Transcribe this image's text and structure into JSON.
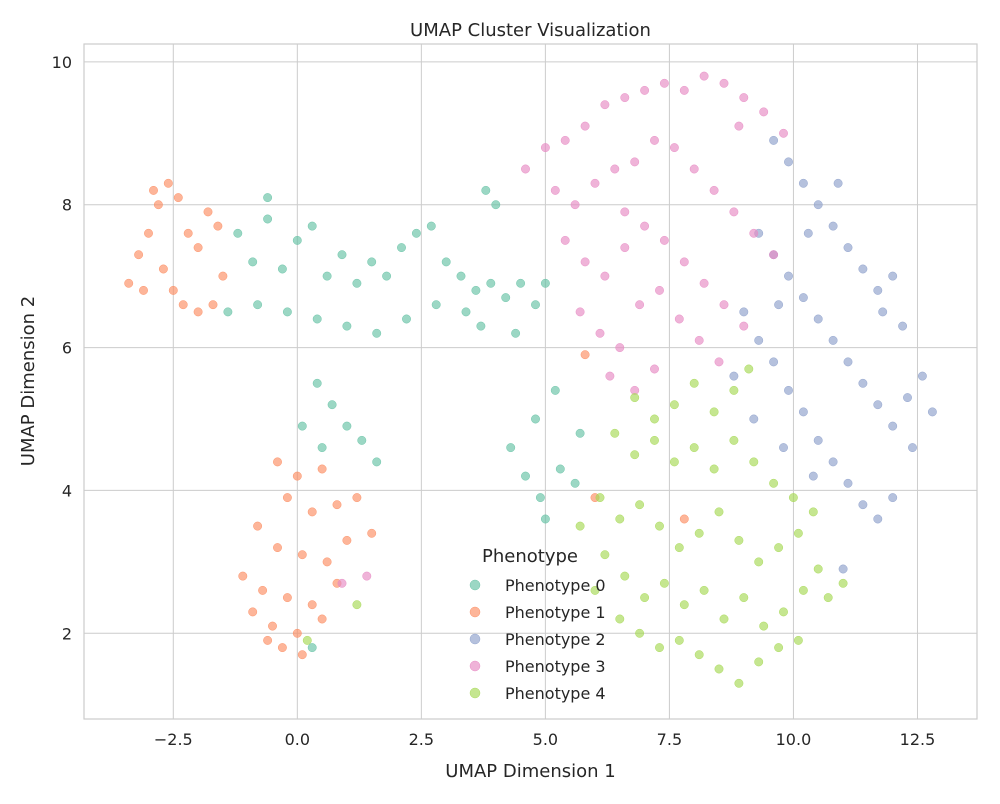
{
  "chart_data": {
    "type": "scatter",
    "title": "UMAP Cluster Visualization",
    "xlabel": "UMAP Dimension 1",
    "ylabel": "UMAP Dimension 2",
    "xlim": [
      -4.3,
      13.7
    ],
    "ylim": [
      0.8,
      10.25
    ],
    "x_ticks": [
      -2.5,
      0.0,
      2.5,
      5.0,
      7.5,
      10.0,
      12.5
    ],
    "x_tick_labels": [
      "−2.5",
      "0.0",
      "2.5",
      "5.0",
      "7.5",
      "10.0",
      "12.5"
    ],
    "y_ticks": [
      2,
      4,
      6,
      8,
      10
    ],
    "y_tick_labels": [
      "2",
      "4",
      "6",
      "8",
      "10"
    ],
    "grid": true,
    "marker_alpha": 0.65,
    "legend": {
      "title": "Phenotype",
      "placement": "lower-center"
    },
    "series": [
      {
        "name": "Phenotype 0",
        "color": "#66c2a5",
        "points": [
          [
            -1.2,
            7.6
          ],
          [
            -0.9,
            7.2
          ],
          [
            -0.6,
            7.8
          ],
          [
            -0.3,
            7.1
          ],
          [
            0.0,
            7.5
          ],
          [
            0.3,
            7.7
          ],
          [
            0.6,
            7.0
          ],
          [
            0.9,
            7.3
          ],
          [
            1.2,
            6.9
          ],
          [
            1.5,
            7.2
          ],
          [
            1.8,
            7.0
          ],
          [
            2.1,
            7.4
          ],
          [
            2.4,
            7.6
          ],
          [
            2.7,
            7.7
          ],
          [
            3.0,
            7.2
          ],
          [
            3.3,
            7.0
          ],
          [
            3.6,
            6.8
          ],
          [
            3.9,
            6.9
          ],
          [
            4.2,
            6.7
          ],
          [
            4.5,
            6.9
          ],
          [
            3.8,
            8.2
          ],
          [
            4.0,
            8.0
          ],
          [
            -0.8,
            6.6
          ],
          [
            -0.2,
            6.5
          ],
          [
            0.4,
            6.4
          ],
          [
            1.0,
            6.3
          ],
          [
            1.6,
            6.2
          ],
          [
            2.2,
            6.4
          ],
          [
            2.8,
            6.6
          ],
          [
            0.4,
            5.5
          ],
          [
            0.7,
            5.2
          ],
          [
            1.0,
            4.9
          ],
          [
            1.3,
            4.7
          ],
          [
            1.6,
            4.4
          ],
          [
            0.1,
            4.9
          ],
          [
            0.5,
            4.6
          ],
          [
            4.3,
            4.6
          ],
          [
            4.6,
            4.2
          ],
          [
            4.9,
            3.9
          ],
          [
            5.0,
            3.6
          ],
          [
            5.3,
            4.3
          ],
          [
            5.6,
            4.1
          ],
          [
            5.2,
            5.4
          ],
          [
            4.8,
            5.0
          ],
          [
            5.7,
            4.8
          ],
          [
            3.7,
            6.3
          ],
          [
            4.4,
            6.2
          ],
          [
            4.8,
            6.6
          ],
          [
            5.0,
            6.9
          ],
          [
            3.4,
            6.5
          ],
          [
            -1.4,
            6.5
          ],
          [
            0.3,
            1.8
          ],
          [
            -0.6,
            8.1
          ]
        ]
      },
      {
        "name": "Phenotype 1",
        "color": "#fc8d62",
        "points": [
          [
            -3.4,
            6.9
          ],
          [
            -3.2,
            7.3
          ],
          [
            -3.0,
            7.6
          ],
          [
            -2.8,
            8.0
          ],
          [
            -2.6,
            8.3
          ],
          [
            -2.4,
            8.1
          ],
          [
            -2.2,
            7.6
          ],
          [
            -2.0,
            7.4
          ],
          [
            -1.8,
            7.9
          ],
          [
            -2.7,
            7.1
          ],
          [
            -2.5,
            6.8
          ],
          [
            -2.3,
            6.6
          ],
          [
            -2.0,
            6.5
          ],
          [
            -1.7,
            6.6
          ],
          [
            -1.5,
            7.0
          ],
          [
            -3.1,
            6.8
          ],
          [
            -1.6,
            7.7
          ],
          [
            -2.9,
            8.2
          ],
          [
            -0.4,
            4.4
          ],
          [
            0.0,
            4.2
          ],
          [
            0.5,
            4.3
          ],
          [
            -0.2,
            3.9
          ],
          [
            0.3,
            3.7
          ],
          [
            0.8,
            3.8
          ],
          [
            1.2,
            3.9
          ],
          [
            -0.8,
            3.5
          ],
          [
            -0.4,
            3.2
          ],
          [
            0.1,
            3.1
          ],
          [
            0.6,
            3.0
          ],
          [
            1.0,
            3.3
          ],
          [
            -1.1,
            2.8
          ],
          [
            -0.7,
            2.6
          ],
          [
            -0.2,
            2.5
          ],
          [
            0.3,
            2.4
          ],
          [
            0.8,
            2.7
          ],
          [
            -0.9,
            2.3
          ],
          [
            -0.5,
            2.1
          ],
          [
            0.0,
            2.0
          ],
          [
            0.5,
            2.2
          ],
          [
            -0.3,
            1.8
          ],
          [
            0.1,
            1.7
          ],
          [
            -0.6,
            1.9
          ],
          [
            6.0,
            3.9
          ],
          [
            5.8,
            5.9
          ],
          [
            7.8,
            3.6
          ],
          [
            1.5,
            3.4
          ]
        ]
      },
      {
        "name": "Phenotype 2",
        "color": "#8da0cb",
        "points": [
          [
            9.6,
            8.9
          ],
          [
            9.9,
            8.6
          ],
          [
            10.2,
            8.3
          ],
          [
            10.5,
            8.0
          ],
          [
            10.8,
            7.7
          ],
          [
            11.1,
            7.4
          ],
          [
            11.4,
            7.1
          ],
          [
            11.7,
            6.8
          ],
          [
            12.0,
            7.0
          ],
          [
            9.3,
            7.6
          ],
          [
            9.6,
            7.3
          ],
          [
            9.9,
            7.0
          ],
          [
            10.2,
            6.7
          ],
          [
            10.5,
            6.4
          ],
          [
            10.8,
            6.1
          ],
          [
            11.1,
            5.8
          ],
          [
            11.4,
            5.5
          ],
          [
            11.7,
            5.2
          ],
          [
            12.0,
            4.9
          ],
          [
            12.3,
            5.3
          ],
          [
            12.6,
            5.6
          ],
          [
            12.8,
            5.1
          ],
          [
            12.4,
            4.6
          ],
          [
            9.0,
            6.5
          ],
          [
            9.3,
            6.1
          ],
          [
            9.6,
            5.8
          ],
          [
            9.9,
            5.4
          ],
          [
            10.2,
            5.1
          ],
          [
            10.5,
            4.7
          ],
          [
            10.8,
            4.4
          ],
          [
            11.1,
            4.1
          ],
          [
            11.4,
            3.8
          ],
          [
            11.7,
            3.6
          ],
          [
            12.0,
            3.9
          ],
          [
            8.8,
            5.6
          ],
          [
            9.2,
            5.0
          ],
          [
            9.8,
            4.6
          ],
          [
            10.4,
            4.2
          ],
          [
            12.2,
            6.3
          ],
          [
            11.8,
            6.5
          ],
          [
            10.9,
            8.3
          ],
          [
            11.0,
            2.9
          ],
          [
            10.3,
            7.6
          ],
          [
            9.7,
            6.6
          ]
        ]
      },
      {
        "name": "Phenotype 3",
        "color": "#e78ac3",
        "points": [
          [
            4.6,
            8.5
          ],
          [
            5.0,
            8.8
          ],
          [
            5.4,
            8.9
          ],
          [
            5.8,
            9.1
          ],
          [
            6.2,
            9.4
          ],
          [
            6.6,
            9.5
          ],
          [
            7.0,
            9.6
          ],
          [
            7.4,
            9.7
          ],
          [
            7.8,
            9.6
          ],
          [
            8.2,
            9.8
          ],
          [
            8.6,
            9.7
          ],
          [
            9.0,
            9.5
          ],
          [
            9.4,
            9.3
          ],
          [
            9.8,
            9.0
          ],
          [
            5.2,
            8.2
          ],
          [
            5.6,
            8.0
          ],
          [
            6.0,
            8.3
          ],
          [
            6.4,
            8.5
          ],
          [
            6.8,
            8.6
          ],
          [
            7.2,
            8.9
          ],
          [
            7.6,
            8.8
          ],
          [
            8.0,
            8.5
          ],
          [
            8.4,
            8.2
          ],
          [
            8.8,
            7.9
          ],
          [
            9.2,
            7.6
          ],
          [
            9.6,
            7.3
          ],
          [
            5.4,
            7.5
          ],
          [
            5.8,
            7.2
          ],
          [
            6.2,
            7.0
          ],
          [
            6.6,
            7.4
          ],
          [
            7.0,
            7.7
          ],
          [
            7.4,
            7.5
          ],
          [
            7.8,
            7.2
          ],
          [
            8.2,
            6.9
          ],
          [
            8.6,
            6.6
          ],
          [
            9.0,
            6.3
          ],
          [
            5.7,
            6.5
          ],
          [
            6.1,
            6.2
          ],
          [
            6.5,
            6.0
          ],
          [
            6.9,
            6.6
          ],
          [
            7.3,
            6.8
          ],
          [
            7.7,
            6.4
          ],
          [
            8.1,
            6.1
          ],
          [
            8.5,
            5.8
          ],
          [
            6.3,
            5.6
          ],
          [
            6.8,
            5.4
          ],
          [
            7.2,
            5.7
          ],
          [
            0.9,
            2.7
          ],
          [
            1.4,
            2.8
          ],
          [
            6.6,
            7.9
          ],
          [
            8.9,
            9.1
          ]
        ]
      },
      {
        "name": "Phenotype 4",
        "color": "#a6d854",
        "points": [
          [
            6.8,
            5.3
          ],
          [
            7.2,
            5.0
          ],
          [
            7.6,
            5.2
          ],
          [
            8.0,
            5.5
          ],
          [
            8.4,
            5.1
          ],
          [
            8.8,
            5.4
          ],
          [
            6.4,
            4.8
          ],
          [
            6.8,
            4.5
          ],
          [
            7.2,
            4.7
          ],
          [
            7.6,
            4.4
          ],
          [
            8.0,
            4.6
          ],
          [
            8.4,
            4.3
          ],
          [
            8.8,
            4.7
          ],
          [
            9.2,
            4.4
          ],
          [
            9.6,
            4.1
          ],
          [
            10.0,
            3.9
          ],
          [
            10.4,
            3.7
          ],
          [
            6.1,
            3.9
          ],
          [
            6.5,
            3.6
          ],
          [
            6.9,
            3.8
          ],
          [
            7.3,
            3.5
          ],
          [
            7.7,
            3.2
          ],
          [
            8.1,
            3.4
          ],
          [
            8.5,
            3.7
          ],
          [
            8.9,
            3.3
          ],
          [
            9.3,
            3.0
          ],
          [
            9.7,
            3.2
          ],
          [
            10.1,
            3.4
          ],
          [
            10.5,
            2.9
          ],
          [
            6.2,
            3.1
          ],
          [
            6.6,
            2.8
          ],
          [
            7.0,
            2.5
          ],
          [
            7.4,
            2.7
          ],
          [
            7.8,
            2.4
          ],
          [
            8.2,
            2.6
          ],
          [
            8.6,
            2.2
          ],
          [
            9.0,
            2.5
          ],
          [
            9.4,
            2.1
          ],
          [
            9.8,
            2.3
          ],
          [
            10.2,
            2.6
          ],
          [
            6.5,
            2.2
          ],
          [
            6.9,
            2.0
          ],
          [
            7.3,
            1.8
          ],
          [
            7.7,
            1.9
          ],
          [
            8.1,
            1.7
          ],
          [
            8.5,
            1.5
          ],
          [
            8.9,
            1.3
          ],
          [
            9.3,
            1.6
          ],
          [
            9.7,
            1.8
          ],
          [
            10.1,
            1.9
          ],
          [
            6.0,
            2.6
          ],
          [
            5.7,
            3.5
          ],
          [
            11.0,
            2.7
          ],
          [
            10.7,
            2.5
          ],
          [
            0.2,
            1.9
          ],
          [
            1.2,
            2.4
          ],
          [
            9.1,
            5.7
          ]
        ]
      }
    ]
  }
}
